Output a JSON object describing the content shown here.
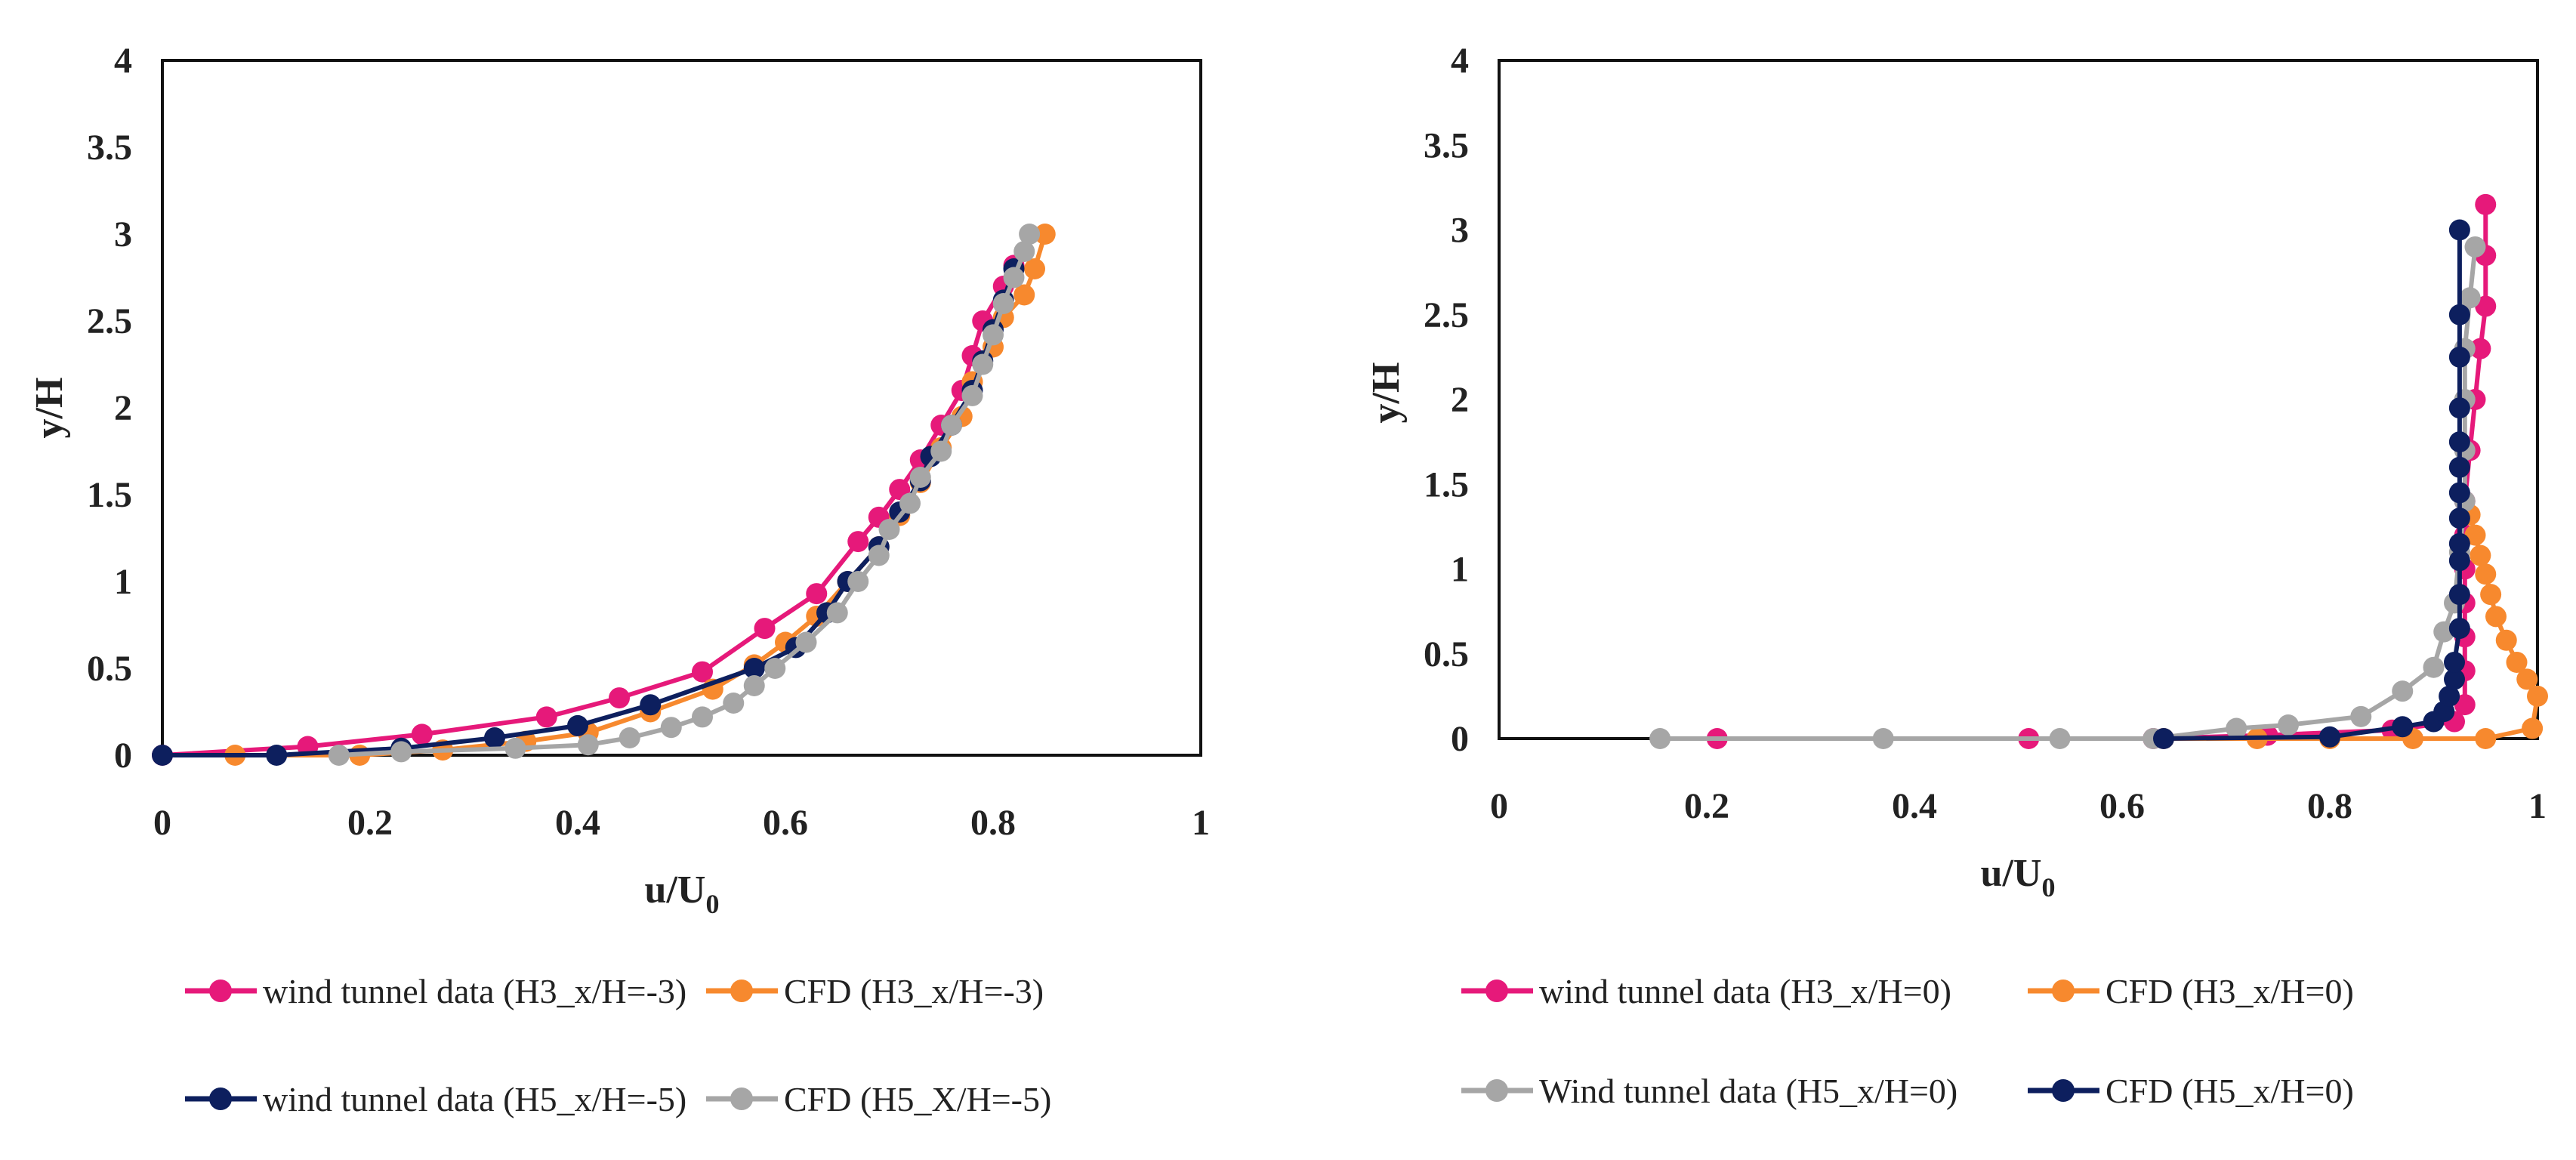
{
  "chart_data": [
    {
      "type": "line",
      "xlabel": "u/U",
      "xlabel_sub": "0",
      "ylabel": "y/H",
      "xlim": [
        0,
        1
      ],
      "ylim": [
        0,
        4
      ],
      "xticks": [
        "0",
        "0.2",
        "0.4",
        "0.6",
        "0.8",
        "1"
      ],
      "yticks": [
        "0",
        "0.5",
        "1",
        "1.5",
        "2",
        "2.5",
        "3",
        "3.5",
        "4"
      ],
      "grid": false,
      "legend_placement": "bottom",
      "series": [
        {
          "name": "wind tunnel data (H3_x/H=-3)",
          "color": "#e6197a",
          "points": [
            [
              0.0,
              0.0
            ],
            [
              0.14,
              0.05
            ],
            [
              0.25,
              0.12
            ],
            [
              0.37,
              0.22
            ],
            [
              0.44,
              0.33
            ],
            [
              0.52,
              0.48
            ],
            [
              0.58,
              0.73
            ],
            [
              0.63,
              0.93
            ],
            [
              0.67,
              1.23
            ],
            [
              0.69,
              1.37
            ],
            [
              0.71,
              1.53
            ],
            [
              0.73,
              1.7
            ],
            [
              0.75,
              1.9
            ],
            [
              0.77,
              2.1
            ],
            [
              0.78,
              2.3
            ],
            [
              0.79,
              2.5
            ],
            [
              0.81,
              2.7
            ],
            [
              0.82,
              2.82
            ]
          ]
        },
        {
          "name": "CFD (H3_x/H=-3)",
          "color": "#f7892e",
          "points": [
            [
              0.07,
              0.0
            ],
            [
              0.19,
              0.0
            ],
            [
              0.27,
              0.03
            ],
            [
              0.35,
              0.08
            ],
            [
              0.41,
              0.13
            ],
            [
              0.47,
              0.25
            ],
            [
              0.53,
              0.38
            ],
            [
              0.57,
              0.52
            ],
            [
              0.6,
              0.65
            ],
            [
              0.63,
              0.8
            ],
            [
              0.66,
              1.0
            ],
            [
              0.69,
              1.2
            ],
            [
              0.71,
              1.38
            ],
            [
              0.73,
              1.57
            ],
            [
              0.75,
              1.77
            ],
            [
              0.77,
              1.95
            ],
            [
              0.78,
              2.15
            ],
            [
              0.8,
              2.35
            ],
            [
              0.81,
              2.52
            ],
            [
              0.83,
              2.65
            ],
            [
              0.84,
              2.8
            ],
            [
              0.85,
              3.0
            ]
          ]
        },
        {
          "name": "wind tunnel data (H5_x/H=-5)",
          "color": "#0d1f5e",
          "points": [
            [
              0.0,
              0.0
            ],
            [
              0.11,
              0.0
            ],
            [
              0.23,
              0.04
            ],
            [
              0.32,
              0.1
            ],
            [
              0.4,
              0.17
            ],
            [
              0.47,
              0.29
            ],
            [
              0.57,
              0.5
            ],
            [
              0.61,
              0.62
            ],
            [
              0.64,
              0.82
            ],
            [
              0.66,
              1.0
            ],
            [
              0.69,
              1.2
            ],
            [
              0.71,
              1.4
            ],
            [
              0.73,
              1.58
            ],
            [
              0.74,
              1.72
            ],
            [
              0.76,
              1.9
            ],
            [
              0.78,
              2.1
            ],
            [
              0.79,
              2.27
            ],
            [
              0.8,
              2.45
            ],
            [
              0.81,
              2.62
            ],
            [
              0.82,
              2.8
            ]
          ]
        },
        {
          "name": "CFD (H5_X/H=-5)",
          "color": "#a6a6a6",
          "points": [
            [
              0.17,
              0.0
            ],
            [
              0.23,
              0.02
            ],
            [
              0.34,
              0.04
            ],
            [
              0.41,
              0.06
            ],
            [
              0.45,
              0.1
            ],
            [
              0.49,
              0.16
            ],
            [
              0.52,
              0.22
            ],
            [
              0.55,
              0.3
            ],
            [
              0.57,
              0.4
            ],
            [
              0.59,
              0.5
            ],
            [
              0.62,
              0.65
            ],
            [
              0.65,
              0.82
            ],
            [
              0.67,
              1.0
            ],
            [
              0.69,
              1.15
            ],
            [
              0.7,
              1.3
            ],
            [
              0.72,
              1.45
            ],
            [
              0.73,
              1.6
            ],
            [
              0.75,
              1.75
            ],
            [
              0.76,
              1.9
            ],
            [
              0.78,
              2.07
            ],
            [
              0.79,
              2.25
            ],
            [
              0.8,
              2.42
            ],
            [
              0.81,
              2.6
            ],
            [
              0.82,
              2.75
            ],
            [
              0.83,
              2.9
            ],
            [
              0.835,
              3.0
            ]
          ]
        }
      ]
    },
    {
      "type": "line",
      "xlabel": "u/U",
      "xlabel_sub": "0",
      "ylabel": "y/H",
      "xlim": [
        0,
        1
      ],
      "ylim": [
        0,
        4
      ],
      "xticks": [
        "0",
        "0.2",
        "0.4",
        "0.6",
        "0.8",
        "1"
      ],
      "yticks": [
        "0",
        "0.5",
        "1",
        "1.5",
        "2",
        "2.5",
        "3",
        "3.5",
        "4"
      ],
      "grid": false,
      "legend_placement": "bottom",
      "series": [
        {
          "name": "wind tunnel data (H3_x/H=0)",
          "color": "#e6197a",
          "points": [
            [
              0.21,
              0.0
            ],
            [
              0.51,
              0.0
            ],
            [
              0.63,
              0.0
            ],
            [
              0.74,
              0.02
            ],
            [
              0.86,
              0.05
            ],
            [
              0.92,
              0.1
            ],
            [
              0.93,
              0.2
            ],
            [
              0.93,
              0.4
            ],
            [
              0.93,
              0.6
            ],
            [
              0.93,
              0.8
            ],
            [
              0.93,
              1.0
            ],
            [
              0.93,
              1.2
            ],
            [
              0.93,
              1.4
            ],
            [
              0.935,
              1.7
            ],
            [
              0.94,
              2.0
            ],
            [
              0.945,
              2.3
            ],
            [
              0.95,
              2.55
            ],
            [
              0.95,
              2.85
            ],
            [
              0.95,
              3.15
            ]
          ]
        },
        {
          "name": "CFD (H3_x/H=0)",
          "color": "#f7892e",
          "points": [
            [
              0.64,
              0.0
            ],
            [
              0.73,
              0.0
            ],
            [
              0.8,
              0.0
            ],
            [
              0.88,
              0.0
            ],
            [
              0.95,
              0.0
            ],
            [
              0.995,
              0.06
            ],
            [
              1.0,
              0.25
            ],
            [
              0.99,
              0.35
            ],
            [
              0.98,
              0.45
            ],
            [
              0.97,
              0.58
            ],
            [
              0.96,
              0.72
            ],
            [
              0.955,
              0.85
            ],
            [
              0.95,
              0.97
            ],
            [
              0.945,
              1.08
            ],
            [
              0.94,
              1.2
            ],
            [
              0.935,
              1.32
            ]
          ]
        },
        {
          "name": "Wind tunnel data (H5_x/H=0)",
          "color": "#a6a6a6",
          "points": [
            [
              0.155,
              0.0
            ],
            [
              0.37,
              0.0
            ],
            [
              0.54,
              0.0
            ],
            [
              0.63,
              0.0
            ],
            [
              0.71,
              0.06
            ],
            [
              0.76,
              0.08
            ],
            [
              0.83,
              0.13
            ],
            [
              0.87,
              0.28
            ],
            [
              0.9,
              0.42
            ],
            [
              0.91,
              0.63
            ],
            [
              0.92,
              0.8
            ],
            [
              0.925,
              1.1
            ],
            [
              0.93,
              1.4
            ],
            [
              0.93,
              1.7
            ],
            [
              0.93,
              2.0
            ],
            [
              0.93,
              2.3
            ],
            [
              0.935,
              2.6
            ],
            [
              0.94,
              2.9
            ]
          ]
        },
        {
          "name": "CFD (H5_x/H=0)",
          "color": "#0d1f5e",
          "points": [
            [
              0.64,
              0.0
            ],
            [
              0.8,
              0.01
            ],
            [
              0.87,
              0.07
            ],
            [
              0.9,
              0.1
            ],
            [
              0.91,
              0.16
            ],
            [
              0.915,
              0.25
            ],
            [
              0.92,
              0.35
            ],
            [
              0.92,
              0.45
            ],
            [
              0.925,
              0.65
            ],
            [
              0.925,
              0.85
            ],
            [
              0.925,
              1.05
            ],
            [
              0.925,
              1.15
            ],
            [
              0.925,
              1.3
            ],
            [
              0.925,
              1.45
            ],
            [
              0.925,
              1.6
            ],
            [
              0.925,
              1.75
            ],
            [
              0.925,
              1.95
            ],
            [
              0.925,
              2.25
            ],
            [
              0.925,
              2.5
            ],
            [
              0.925,
              3.0
            ]
          ]
        }
      ]
    }
  ]
}
